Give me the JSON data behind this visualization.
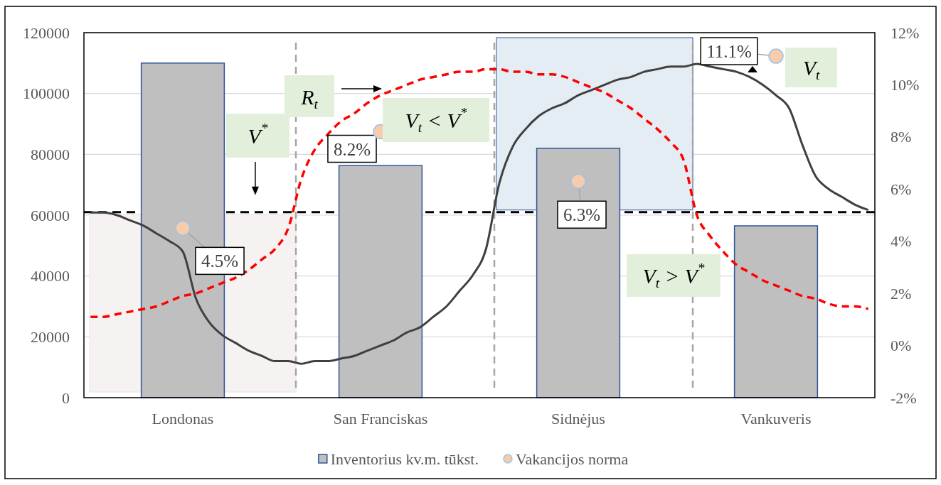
{
  "chart_data": [
    {
      "type": "bar",
      "categories": [
        "Londonas",
        "San Franciskas",
        "Sidnėjus",
        "Vankuveris"
      ],
      "series": [
        {
          "name": "Inventorius kv.m. tūkst.",
          "color": "#bfbfbf",
          "values": [
            110000,
            76300,
            82000,
            56500
          ]
        }
      ],
      "ylim": [
        0,
        120000
      ],
      "yticks": [
        0,
        20000,
        40000,
        60000,
        80000,
        100000,
        120000
      ],
      "grid": "y",
      "legend": "bottom",
      "ref_lines": [
        {
          "axis": "y",
          "value": 61000,
          "color": "#000000",
          "line_style": "dashed"
        }
      ]
    },
    {
      "type": "line",
      "tick_labels": "y",
      "categories": [
        null,
        null,
        null,
        null,
        null,
        null,
        null,
        null,
        null,
        null,
        null,
        null,
        null,
        null,
        null,
        null,
        null,
        null,
        null,
        null,
        null,
        null,
        null,
        null,
        null,
        null,
        null,
        null,
        null,
        null,
        null,
        null,
        null,
        null,
        null,
        null,
        null,
        null,
        null,
        null,
        null,
        null,
        null,
        null,
        null,
        null,
        null,
        null,
        null,
        null,
        null,
        null,
        null,
        null,
        null,
        null,
        null,
        null,
        null,
        null
      ],
      "series": [
        {
          "name": "Vakancijos norma",
          "type": "scatter",
          "marker": "circle",
          "color": "#f8cbad",
          "values": [
            null,
            null,
            null,
            null,
            null,
            null,
            null,
            4.5,
            null,
            null,
            null,
            null,
            null,
            null,
            null,
            null,
            null,
            null,
            null,
            null,
            null,
            null,
            8.2,
            null,
            null,
            null,
            null,
            null,
            null,
            null,
            null,
            null,
            null,
            null,
            null,
            null,
            null,
            6.3,
            null,
            null,
            null,
            null,
            null,
            null,
            null,
            null,
            null,
            null,
            null,
            null,
            null,
            null,
            11.1,
            null,
            null,
            null,
            null,
            null,
            null,
            null
          ],
          "value_labels": [
            null,
            null,
            null,
            null,
            null,
            null,
            null,
            "4.5%",
            null,
            null,
            null,
            null,
            null,
            null,
            null,
            null,
            null,
            null,
            null,
            null,
            null,
            null,
            "8.2%",
            null,
            null,
            null,
            null,
            null,
            null,
            null,
            null,
            null,
            null,
            null,
            null,
            null,
            null,
            "6.3%",
            null,
            null,
            null,
            null,
            null,
            null,
            null,
            null,
            null,
            null,
            null,
            null,
            null,
            null,
            "11.1%",
            null,
            null,
            null,
            null,
            null,
            null,
            null
          ]
        },
        {
          "color": "#404040",
          "values": [
            5.1,
            5.1,
            5.0,
            4.8,
            4.6,
            4.3,
            4.0,
            3.6,
            1.8,
            0.9,
            0.4,
            0.1,
            -0.2,
            -0.4,
            -0.6,
            -0.6,
            -0.7,
            -0.6,
            -0.6,
            -0.5,
            -0.4,
            -0.2,
            0.0,
            0.2,
            0.5,
            0.7,
            1.1,
            1.5,
            2.1,
            2.7,
            3.7,
            6.2,
            7.6,
            8.3,
            8.8,
            9.1,
            9.3,
            9.6,
            9.8,
            10.0,
            10.2,
            10.3,
            10.5,
            10.6,
            10.7,
            10.7,
            10.8,
            10.7,
            10.6,
            10.5,
            10.3,
            10.0,
            9.6,
            9.1,
            7.7,
            6.5,
            6.0,
            5.7,
            5.4,
            5.2
          ]
        },
        {
          "color": "#ff0000",
          "line_style": "dashed",
          "values": [
            1.1,
            1.1,
            1.2,
            1.3,
            1.4,
            1.5,
            1.7,
            1.9,
            2.0,
            2.2,
            2.4,
            2.6,
            2.9,
            3.3,
            3.7,
            4.5,
            6.4,
            7.5,
            8.1,
            8.6,
            8.9,
            9.3,
            9.6,
            9.8,
            10.0,
            10.2,
            10.3,
            10.4,
            10.5,
            10.5,
            10.6,
            10.6,
            10.5,
            10.5,
            10.4,
            10.4,
            10.3,
            10.1,
            9.9,
            9.7,
            9.4,
            9.1,
            8.7,
            8.3,
            7.8,
            7.1,
            5.0,
            4.2,
            3.6,
            3.1,
            2.8,
            2.5,
            2.3,
            2.1,
            1.9,
            1.8,
            1.6,
            1.5,
            1.5,
            1.4
          ]
        }
      ],
      "ylim": [
        -2,
        12
      ],
      "yticks": [
        {
          "value": -2,
          "label": "-2%"
        },
        {
          "value": 0,
          "label": "0%"
        },
        {
          "value": 2,
          "label": "2%"
        },
        {
          "value": 4,
          "label": "4%"
        },
        {
          "value": 6,
          "label": "6%"
        },
        {
          "value": 8,
          "label": "8%"
        },
        {
          "value": 10,
          "label": "10%"
        },
        {
          "value": 12,
          "label": "12%"
        }
      ],
      "legend": "bottom",
      "annotations": [
        "V$^{*}$",
        "R$_{t}$",
        "V$_{t}$ < V$^{*}$",
        "V$_{t}$ > V$^{*}$",
        "V$_{t}$"
      ]
    }
  ]
}
